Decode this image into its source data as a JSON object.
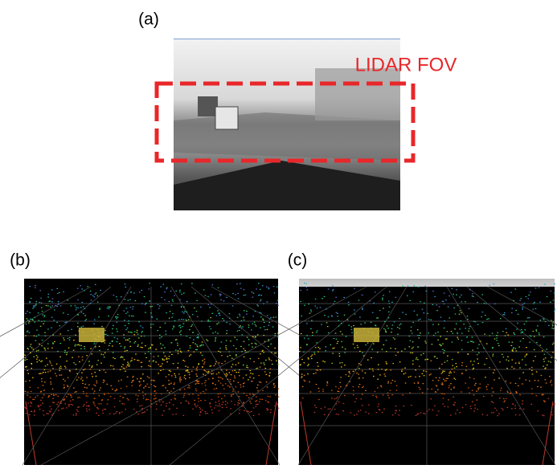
{
  "panels": [
    {
      "label": "(a)",
      "annotation": "LIDAR FOV"
    },
    {
      "label": "(b)"
    },
    {
      "label": "(c)"
    }
  ]
}
